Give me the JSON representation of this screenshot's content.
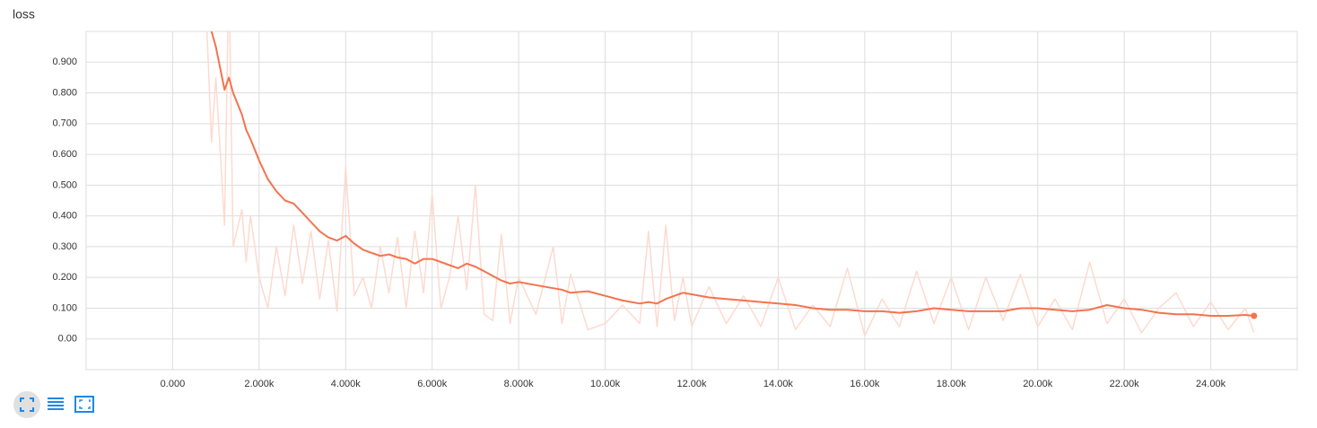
{
  "chart_data": {
    "type": "line",
    "title": "loss",
    "x": [
      500,
      900,
      1000,
      1200,
      1300,
      1400,
      1600,
      1700,
      1800,
      2000,
      2200,
      2400,
      2600,
      2800,
      3000,
      3200,
      3400,
      3600,
      3800,
      4000,
      4200,
      4400,
      4600,
      4800,
      5000,
      5200,
      5400,
      5600,
      5800,
      6000,
      6200,
      6400,
      6600,
      6800,
      7000,
      7200,
      7400,
      7600,
      7800,
      8000,
      8400,
      8800,
      9000,
      9200,
      9600,
      10000,
      10400,
      10800,
      11000,
      11200,
      11400,
      11600,
      11800,
      12000,
      12400,
      12800,
      13200,
      13600,
      14000,
      14400,
      14800,
      15200,
      15600,
      16000,
      16400,
      16800,
      17200,
      17600,
      18000,
      18400,
      18800,
      19200,
      19600,
      20000,
      20400,
      20800,
      21200,
      21600,
      22000,
      22400,
      22800,
      23200,
      23600,
      24000,
      24400,
      24800,
      25000
    ],
    "series": [
      {
        "color": "#fddacf",
        "values": [
          2.0,
          0.64,
          0.85,
          0.37,
          1.2,
          0.3,
          0.42,
          0.25,
          0.4,
          0.2,
          0.1,
          0.3,
          0.14,
          0.37,
          0.18,
          0.35,
          0.13,
          0.32,
          0.09,
          0.56,
          0.14,
          0.2,
          0.1,
          0.3,
          0.15,
          0.33,
          0.1,
          0.35,
          0.15,
          0.47,
          0.1,
          0.2,
          0.4,
          0.16,
          0.5,
          0.08,
          0.06,
          0.34,
          0.05,
          0.2,
          0.08,
          0.3,
          0.05,
          0.21,
          0.03,
          0.05,
          0.11,
          0.05,
          0.35,
          0.04,
          0.37,
          0.06,
          0.2,
          0.04,
          0.17,
          0.05,
          0.14,
          0.04,
          0.2,
          0.03,
          0.11,
          0.04,
          0.23,
          0.01,
          0.13,
          0.04,
          0.22,
          0.05,
          0.2,
          0.03,
          0.2,
          0.06,
          0.21,
          0.04,
          0.13,
          0.03,
          0.25,
          0.05,
          0.13,
          0.02,
          0.1,
          0.15,
          0.04,
          0.12,
          0.03,
          0.1,
          0.02
        ]
      },
      {
        "color": "#f4734e",
        "values": [
          1.5,
          1.0,
          0.95,
          0.81,
          0.85,
          0.8,
          0.73,
          0.68,
          0.65,
          0.58,
          0.52,
          0.48,
          0.45,
          0.44,
          0.41,
          0.38,
          0.35,
          0.33,
          0.32,
          0.335,
          0.31,
          0.29,
          0.28,
          0.27,
          0.275,
          0.265,
          0.26,
          0.245,
          0.26,
          0.26,
          0.25,
          0.24,
          0.23,
          0.245,
          0.235,
          0.22,
          0.205,
          0.19,
          0.18,
          0.185,
          0.175,
          0.165,
          0.16,
          0.15,
          0.155,
          0.14,
          0.125,
          0.115,
          0.12,
          0.115,
          0.13,
          0.14,
          0.15,
          0.145,
          0.135,
          0.13,
          0.125,
          0.12,
          0.115,
          0.11,
          0.1,
          0.095,
          0.095,
          0.09,
          0.09,
          0.085,
          0.09,
          0.1,
          0.095,
          0.09,
          0.09,
          0.09,
          0.1,
          0.1,
          0.095,
          0.09,
          0.095,
          0.11,
          0.1,
          0.095,
          0.085,
          0.08,
          0.08,
          0.075,
          0.075,
          0.078,
          0.075
        ]
      }
    ],
    "xlim": [
      -2000,
      26000
    ],
    "ylim": [
      -0.1,
      1.0
    ],
    "xticks": [
      {
        "value": 0,
        "label": "0.000"
      },
      {
        "value": 2000,
        "label": "2.000k"
      },
      {
        "value": 4000,
        "label": "4.000k"
      },
      {
        "value": 6000,
        "label": "6.000k"
      },
      {
        "value": 8000,
        "label": "8.000k"
      },
      {
        "value": 10000,
        "label": "10.00k"
      },
      {
        "value": 12000,
        "label": "12.00k"
      },
      {
        "value": 14000,
        "label": "14.00k"
      },
      {
        "value": 16000,
        "label": "16.00k"
      },
      {
        "value": 18000,
        "label": "18.00k"
      },
      {
        "value": 20000,
        "label": "20.00k"
      },
      {
        "value": 22000,
        "label": "22.00k"
      },
      {
        "value": 24000,
        "label": "24.00k"
      }
    ],
    "yticks": [
      {
        "value": 0,
        "label": "0.00"
      },
      {
        "value": 0.1,
        "label": "0.100"
      },
      {
        "value": 0.2,
        "label": "0.200"
      },
      {
        "value": 0.3,
        "label": "0.300"
      },
      {
        "value": 0.4,
        "label": "0.400"
      },
      {
        "value": 0.5,
        "label": "0.500"
      },
      {
        "value": 0.6,
        "label": "0.600"
      },
      {
        "value": 0.7,
        "label": "0.700"
      },
      {
        "value": 0.8,
        "label": "0.800"
      },
      {
        "value": 0.9,
        "label": "0.900"
      }
    ],
    "grid": true
  }
}
